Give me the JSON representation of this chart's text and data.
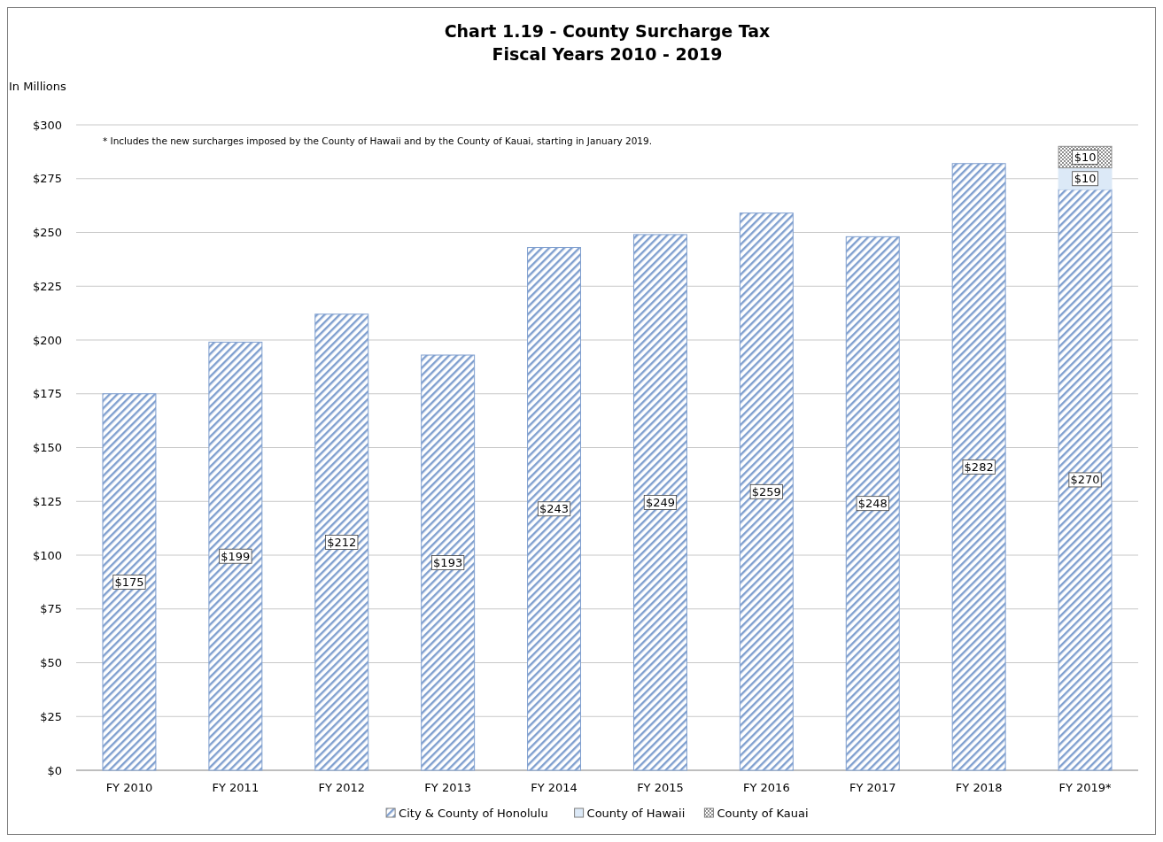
{
  "chart_data": {
    "type": "bar",
    "title": "Chart 1.19 - County Surcharge Tax",
    "subtitle": "Fiscal Years 2010 - 2019",
    "ylabel": "In Millions",
    "annotations": [
      "* Includes the new surcharges imposed by the County of Hawaii and by the County of Kauai, starting in January 2019."
    ],
    "categories": [
      "FY 2010",
      "FY 2011",
      "FY 2012",
      "FY 2013",
      "FY 2014",
      "FY 2015",
      "FY 2016",
      "FY 2017",
      "FY 2018",
      "FY 2019*"
    ],
    "stacked": true,
    "grid": "y",
    "legend": "bottom",
    "ylim": [
      0,
      300
    ],
    "yticks": [
      {
        "value": 0,
        "label": "$0"
      },
      {
        "value": 25,
        "label": "$25"
      },
      {
        "value": 50,
        "label": "$50"
      },
      {
        "value": 75,
        "label": "$75"
      },
      {
        "value": 100,
        "label": "$100"
      },
      {
        "value": 125,
        "label": "$125"
      },
      {
        "value": 150,
        "label": "$150"
      },
      {
        "value": 175,
        "label": "$175"
      },
      {
        "value": 200,
        "label": "$200"
      },
      {
        "value": 225,
        "label": "$225"
      },
      {
        "value": 250,
        "label": "$250"
      },
      {
        "value": 275,
        "label": "$275"
      },
      {
        "value": 300,
        "label": "$300"
      }
    ],
    "series": [
      {
        "name": "City & County of Honolulu",
        "color": "#7f9fcf",
        "values": [
          175,
          199,
          212,
          193,
          243,
          249,
          259,
          248,
          282,
          270
        ],
        "value_labels": [
          "$175",
          "$199",
          "$212",
          "$193",
          "$243",
          "$249",
          "$259",
          "$248",
          "$282",
          "$270"
        ]
      },
      {
        "name": "County of Hawaii",
        "color": "#dce9f7",
        "values": [
          null,
          null,
          null,
          null,
          null,
          null,
          null,
          null,
          null,
          10
        ],
        "value_labels": [
          null,
          null,
          null,
          null,
          null,
          null,
          null,
          null,
          null,
          "$10"
        ]
      },
      {
        "name": "County of Kauai",
        "color": "#8e8e8e",
        "values": [
          null,
          null,
          null,
          null,
          null,
          null,
          null,
          null,
          null,
          10
        ],
        "value_labels": [
          null,
          null,
          null,
          null,
          null,
          null,
          null,
          null,
          null,
          "$10"
        ]
      }
    ]
  }
}
